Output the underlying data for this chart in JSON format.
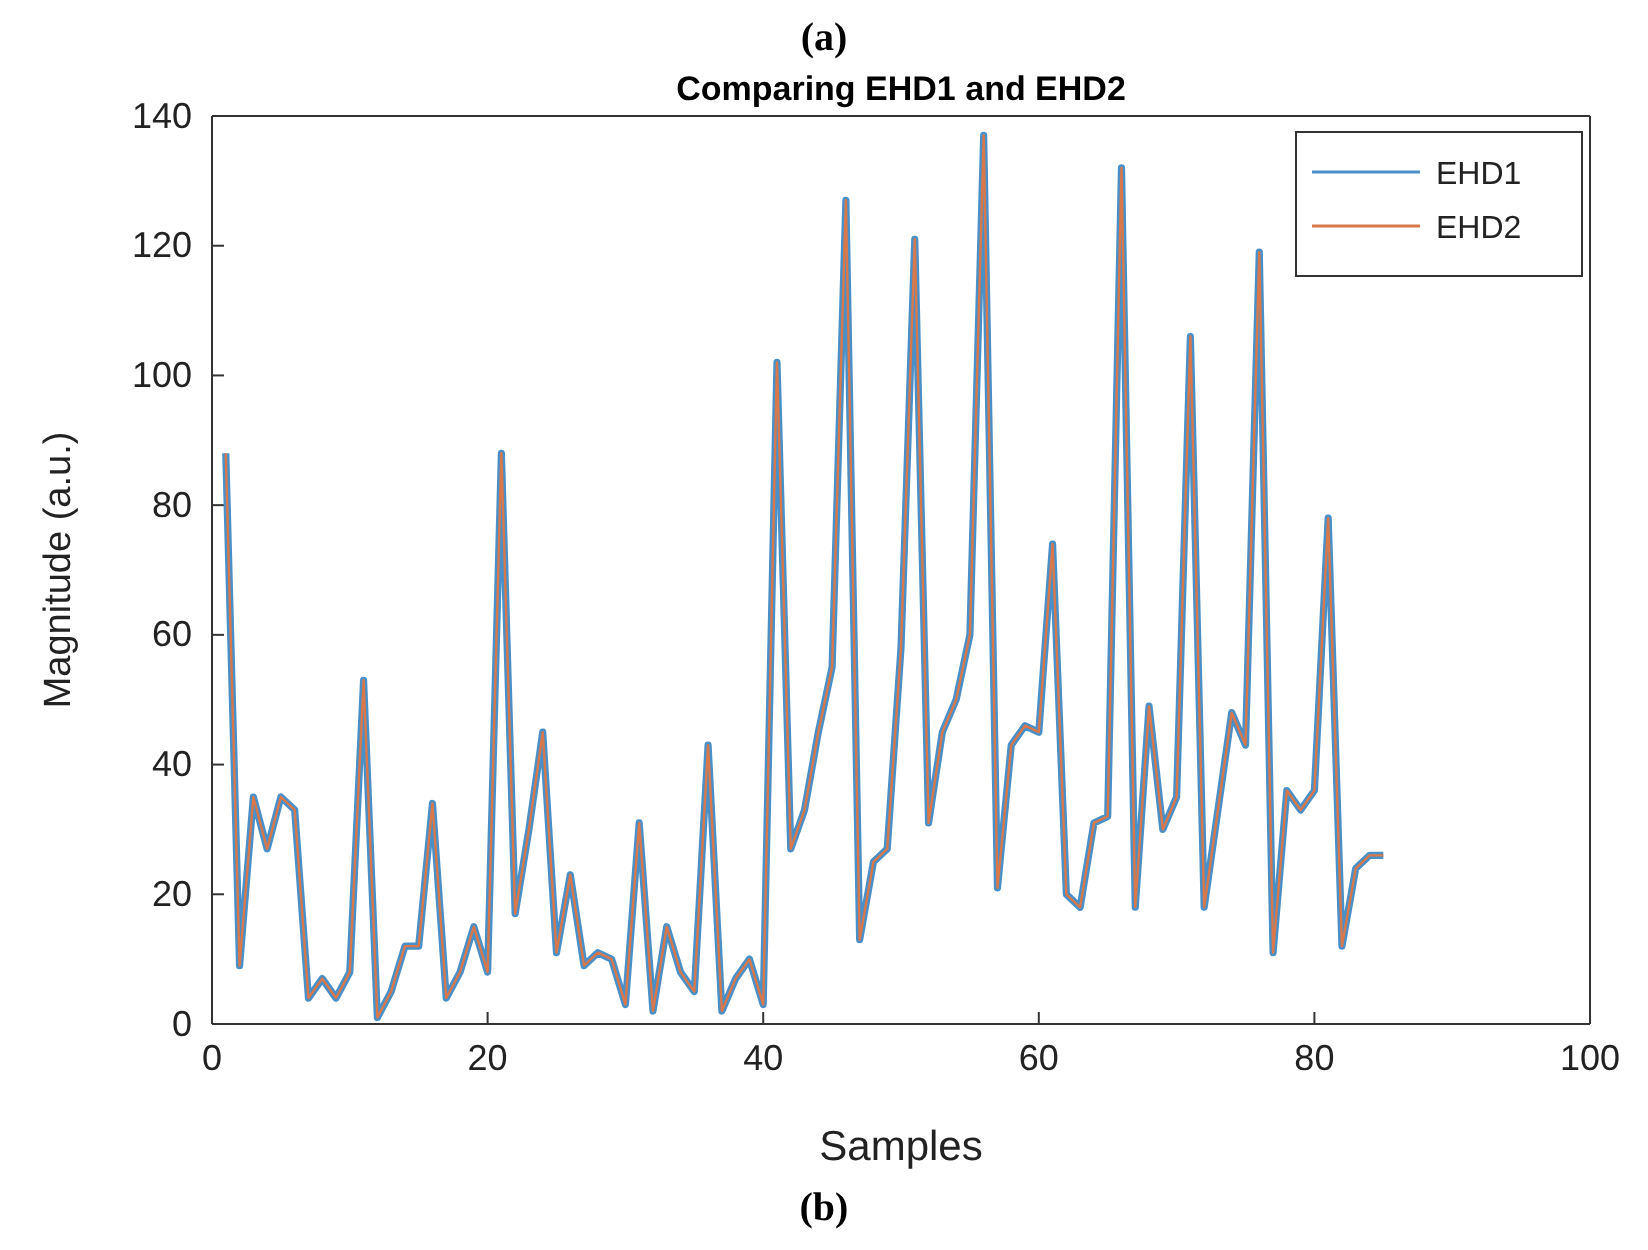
{
  "chart_data": {
    "type": "line",
    "title": "Comparing EHD1 and EHD2",
    "xlabel": "Samples",
    "ylabel": "Magnitude (a.u.)",
    "annotations": [
      "(a)",
      "(b)"
    ],
    "x": [
      1,
      2,
      3,
      4,
      5,
      6,
      7,
      8,
      9,
      10,
      11,
      12,
      13,
      14,
      15,
      16,
      17,
      18,
      19,
      20,
      21,
      22,
      23,
      24,
      25,
      26,
      27,
      28,
      29,
      30,
      31,
      32,
      33,
      34,
      35,
      36,
      37,
      38,
      39,
      40,
      41,
      42,
      43,
      44,
      45,
      46,
      47,
      48,
      49,
      50,
      51,
      52,
      53,
      54,
      55,
      56,
      57,
      58,
      59,
      60,
      61,
      62,
      63,
      64,
      65,
      66,
      67,
      68,
      69,
      70,
      71,
      72,
      73,
      74,
      75,
      76,
      77,
      78,
      79,
      80,
      81,
      82,
      83,
      84,
      85
    ],
    "series": [
      {
        "name": "EHD1",
        "color": "#4a90c8",
        "values": [
          88,
          9,
          35,
          27,
          35,
          33,
          4,
          7,
          4,
          8,
          53,
          1,
          5,
          12,
          12,
          34,
          4,
          8,
          15,
          8,
          88,
          17,
          30,
          45,
          11,
          23,
          9,
          11,
          10,
          3,
          31,
          2,
          15,
          8,
          5,
          43,
          2,
          7,
          10,
          3,
          102,
          27,
          33,
          45,
          55,
          127,
          13,
          25,
          27,
          58,
          121,
          31,
          45,
          50,
          60,
          137,
          21,
          43,
          46,
          45,
          74,
          20,
          18,
          31,
          32,
          132,
          18,
          49,
          30,
          35,
          106,
          18,
          33,
          48,
          43,
          119,
          11,
          36,
          33,
          36,
          78,
          12,
          24,
          26,
          26
        ]
      },
      {
        "name": "EHD2",
        "color": "#d9784a",
        "values": [
          88,
          9,
          35,
          27,
          35,
          33,
          4,
          7,
          4,
          8,
          53,
          1,
          5,
          12,
          12,
          34,
          4,
          8,
          15,
          8,
          88,
          17,
          30,
          45,
          11,
          23,
          9,
          11,
          10,
          3,
          31,
          2,
          15,
          8,
          5,
          43,
          2,
          7,
          10,
          3,
          102,
          27,
          33,
          45,
          55,
          127,
          13,
          25,
          27,
          58,
          121,
          31,
          45,
          50,
          60,
          137,
          21,
          43,
          46,
          45,
          74,
          20,
          18,
          31,
          32,
          132,
          18,
          49,
          30,
          35,
          106,
          18,
          33,
          48,
          43,
          119,
          11,
          36,
          33,
          36,
          78,
          12,
          24,
          26,
          26
        ]
      }
    ],
    "xlim": [
      0,
      100
    ],
    "xticks": [
      0,
      20,
      40,
      60,
      80,
      100
    ],
    "ylim": [
      0,
      140
    ],
    "yticks": [
      0,
      20,
      40,
      60,
      80,
      100,
      120,
      140
    ],
    "grid": false,
    "legend": "top right",
    "marker": "none",
    "line_style": "solid"
  }
}
